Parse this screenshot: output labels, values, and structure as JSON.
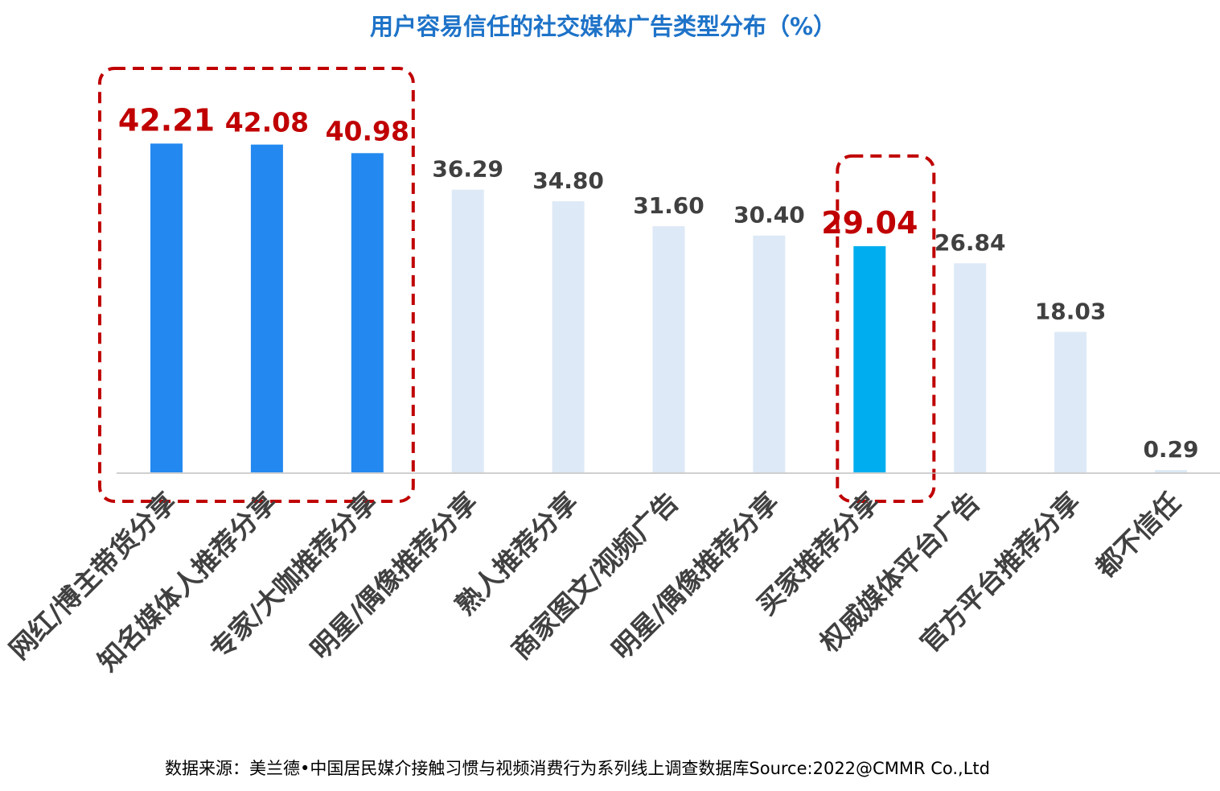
{
  "chart_data": {
    "type": "bar",
    "title": "用户容易信任的社交媒体广告类型分布（%）",
    "xlabel": "",
    "ylabel": "",
    "ylim": [
      0,
      45
    ],
    "grid": false,
    "legend": "none",
    "categories": [
      "网红/博主带货分享",
      "知名媒体人推荐分享",
      "专家/大咖推荐分享",
      "明星/偶像推荐分享",
      "熟人推荐分享",
      "商家图文/视频广告",
      "明星/偶像推荐分享",
      "买家推荐分享",
      "权威媒体平台广告",
      "官方平台推荐分享",
      "都不信任"
    ],
    "values": [
      42.21,
      42.08,
      40.98,
      36.29,
      34.8,
      31.6,
      30.4,
      29.04,
      26.84,
      18.03,
      0.29
    ],
    "value_labels": [
      "42.21",
      "42.08",
      "40.98",
      "36.29",
      "34.80",
      "31.60",
      "30.40",
      "29.04",
      "26.84",
      "18.03",
      "0.29"
    ],
    "highlighted": [
      true,
      true,
      true,
      false,
      false,
      false,
      false,
      true,
      false,
      false,
      false
    ],
    "highlight_groups": [
      [
        0,
        2
      ],
      [
        7,
        7
      ]
    ]
  },
  "colors": {
    "title": "#1e73c8",
    "highlight_bar": "#2389f0",
    "highlight_bar_alt": "#00aeef",
    "normal_bar": "#dde9f6",
    "highlight_label": "#c00000",
    "normal_label": "#404040",
    "category_label": "#404040",
    "dashed_box": "#c00000",
    "axis": "#bfbfbf",
    "source": "#000000"
  },
  "source": "数据来源：美兰德•中国居民媒介接触习惯与视频消费行为系列线上调查数据库Source:2022@CMMR Co.,Ltd"
}
